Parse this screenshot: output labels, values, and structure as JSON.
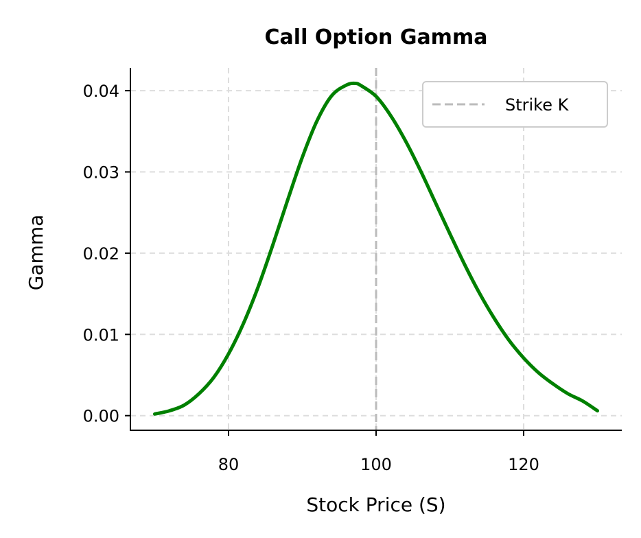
{
  "colors": {
    "curve": "#008000",
    "strike_line": "#bbbbbb",
    "grid": "#dddddd",
    "axis": "#000000",
    "legend_border": "#cccccc"
  },
  "chart_data": {
    "type": "line",
    "title": "Call Option Gamma",
    "xlabel": "Stock Price (S)",
    "ylabel": "Gamma",
    "xlim": [
      66.7,
      133.3
    ],
    "ylim": [
      -0.0018,
      0.0428
    ],
    "xticks": [
      80,
      100,
      120
    ],
    "xtick_labels": [
      "80",
      "100",
      "120"
    ],
    "yticks": [
      0.0,
      0.01,
      0.02,
      0.03,
      0.04
    ],
    "ytick_labels": [
      "0.00",
      "0.01",
      "0.02",
      "0.03",
      "0.04"
    ],
    "grid": true,
    "grid_style": "dashed",
    "legend_position": "top-right",
    "series": [
      {
        "x": [
          70,
          72,
          74,
          76,
          78,
          80,
          82,
          84,
          86,
          88,
          90,
          92,
          94,
          96,
          97.2,
          98,
          100,
          102,
          104,
          106,
          108,
          110,
          112,
          114,
          116,
          118,
          120,
          122,
          124,
          126,
          128,
          130
        ],
        "y": [
          0.0002,
          0.0006,
          0.0013,
          0.0027,
          0.0047,
          0.0076,
          0.0113,
          0.0158,
          0.021,
          0.0265,
          0.0318,
          0.0363,
          0.0394,
          0.0407,
          0.0409,
          0.0406,
          0.0393,
          0.0369,
          0.0338,
          0.0302,
          0.0263,
          0.0224,
          0.0186,
          0.0151,
          0.012,
          0.0093,
          0.0071,
          0.0053,
          0.0039,
          0.0027,
          0.0018,
          0.0006
        ]
      }
    ],
    "vlines": [
      {
        "name": "Strike K",
        "x": 100,
        "style": "dashed"
      }
    ]
  }
}
